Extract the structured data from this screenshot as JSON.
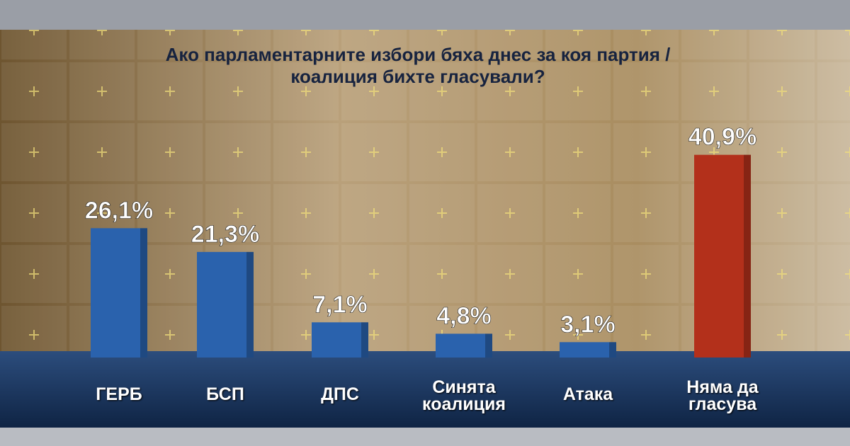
{
  "chart_data": {
    "type": "bar",
    "title": "Ако парламентарните избори бяха днес за коя партия / коалиция бихте гласували?",
    "categories": [
      "ГЕРБ",
      "БСП",
      "ДПС",
      "Синята коалиция",
      "Атака",
      "Няма да гласува"
    ],
    "values": [
      26.1,
      21.3,
      7.1,
      4.8,
      3.1,
      40.9
    ],
    "value_labels": [
      "26,1%",
      "21,3%",
      "7,1%",
      "4,8%",
      "3,1%",
      "40,9%"
    ],
    "colors": [
      "#2a62ad",
      "#2a62ad",
      "#2a62ad",
      "#2a62ad",
      "#2a62ad",
      "#b3301b"
    ]
  }
}
